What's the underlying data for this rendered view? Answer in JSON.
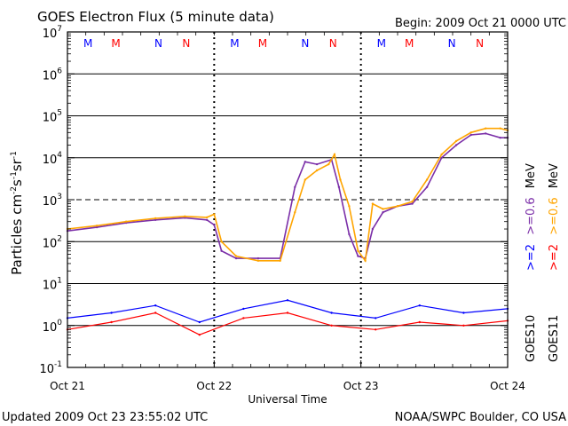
{
  "header": {
    "title": "GOES Electron Flux (5 minute data)",
    "begin": "Begin: 2009 Oct 21 0000 UTC"
  },
  "footer": {
    "updated": "Updated 2009 Oct 23 23:55:02 UTC",
    "credit": "NOAA/SWPC Boulder, CO USA"
  },
  "colors": {
    "goes10_high": "#0000ff",
    "goes10_low": "#7b2fa8",
    "goes11_high": "#ff0000",
    "goes11_low": "#ffa500",
    "axis": "#000000"
  },
  "markers": [
    {
      "label": "M",
      "color": "#0000ff"
    },
    {
      "label": "M",
      "color": "#ff0000"
    },
    {
      "label": "N",
      "color": "#0000ff"
    },
    {
      "label": "N",
      "color": "#ff0000"
    }
  ],
  "legend": {
    "goes10": "GOES10",
    "goes11": "GOES11",
    "blue": ">=2",
    "purple": ">=0.6",
    "unit": "MeV",
    "red": ">=2",
    "orange": ">=0.6"
  },
  "chart_data": {
    "type": "line",
    "title": "GOES Electron Flux (5 minute data)",
    "xlabel": "Universal Time",
    "ylabel": "Particles cm-2s-1sr-1",
    "ylabel_parts": {
      "base": "Particles cm",
      "e1": "-2",
      "s": "s",
      "e2": "-1",
      "sr": "sr",
      "e3": "-1"
    },
    "yscale": "log",
    "ylim_exponents": [
      -1,
      7
    ],
    "ytick_exponents": [
      -1,
      0,
      1,
      2,
      3,
      4,
      5,
      6,
      7
    ],
    "dashed_threshold": 1000,
    "xlim_days": [
      0,
      3
    ],
    "xticks": [
      "Oct 21",
      "Oct 22",
      "Oct 23",
      "Oct 24"
    ],
    "grid": true,
    "series": [
      {
        "name": ">=0.6 MeV GOES10",
        "color": "#7b2fa8",
        "x": [
          0.0,
          0.2,
          0.4,
          0.6,
          0.8,
          0.95,
          1.0,
          1.05,
          1.15,
          1.3,
          1.45,
          1.55,
          1.62,
          1.7,
          1.8,
          1.85,
          1.92,
          1.98,
          2.03,
          2.08,
          2.15,
          2.25,
          2.35,
          2.45,
          2.55,
          2.65,
          2.75,
          2.85,
          2.95,
          3.0
        ],
        "y": [
          180,
          220,
          280,
          330,
          370,
          330,
          250,
          60,
          40,
          40,
          40,
          2000,
          8000,
          7000,
          9000,
          2000,
          150,
          45,
          40,
          200,
          500,
          700,
          800,
          2000,
          10000,
          20000,
          35000,
          38000,
          30000,
          30000
        ]
      },
      {
        "name": ">=0.6 MeV GOES11",
        "color": "#ffa500",
        "x": [
          0.0,
          0.2,
          0.4,
          0.6,
          0.8,
          0.95,
          1.0,
          1.05,
          1.15,
          1.3,
          1.45,
          1.55,
          1.62,
          1.7,
          1.78,
          1.82,
          1.86,
          1.92,
          1.98,
          2.03,
          2.08,
          2.15,
          2.25,
          2.35,
          2.45,
          2.55,
          2.65,
          2.75,
          2.85,
          2.95,
          3.0
        ],
        "y": [
          200,
          240,
          300,
          360,
          400,
          380,
          450,
          100,
          45,
          35,
          35,
          500,
          3000,
          5000,
          7000,
          12000,
          3000,
          700,
          60,
          35,
          800,
          600,
          700,
          900,
          3000,
          12000,
          25000,
          40000,
          50000,
          50000,
          45000
        ]
      },
      {
        "name": ">=2 MeV GOES10",
        "color": "#0000ff",
        "x": [
          0.0,
          0.3,
          0.6,
          0.9,
          1.2,
          1.5,
          1.8,
          2.1,
          2.4,
          2.7,
          3.0
        ],
        "y": [
          1.5,
          2.0,
          3.0,
          1.2,
          2.5,
          4.0,
          2.0,
          1.5,
          3.0,
          2.0,
          2.5
        ]
      },
      {
        "name": ">=2 MeV GOES11",
        "color": "#ff0000",
        "x": [
          0.0,
          0.3,
          0.6,
          0.9,
          1.2,
          1.5,
          1.8,
          2.1,
          2.4,
          2.7,
          3.0
        ],
        "y": [
          0.8,
          1.2,
          2.0,
          0.6,
          1.5,
          2.0,
          1.0,
          0.8,
          1.2,
          1.0,
          1.3
        ]
      }
    ]
  }
}
